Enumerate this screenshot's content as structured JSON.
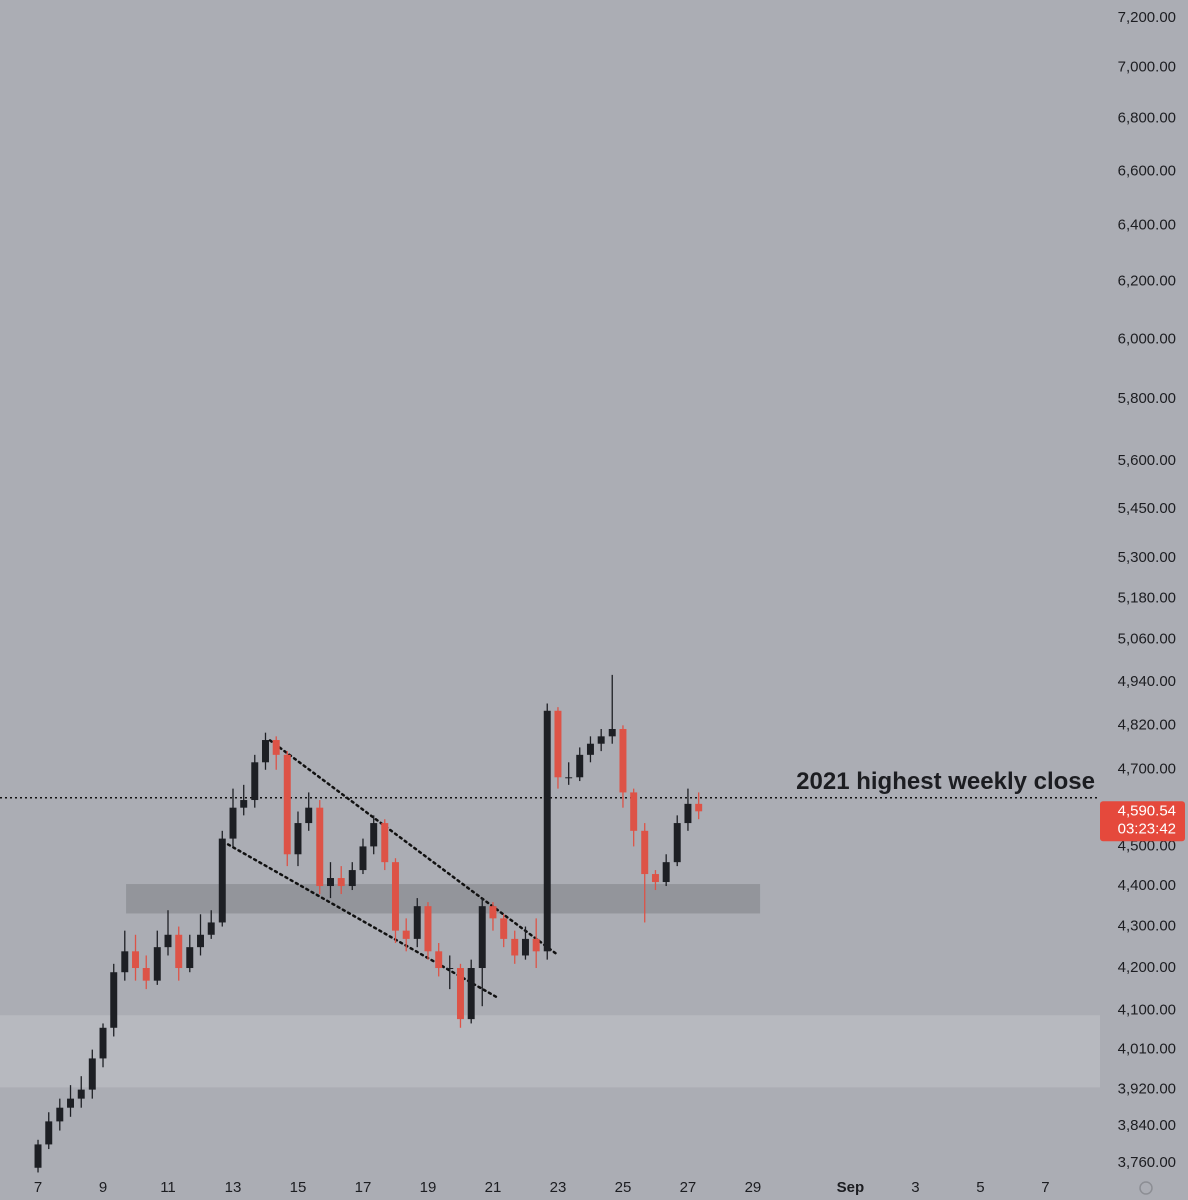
{
  "chart_data": {
    "type": "candlestick",
    "log_scale": true,
    "grid": false,
    "up_color": "#1d1f24",
    "down_color": "#dd5347",
    "xlim": [
      5.83,
      39.68
    ],
    "ylim": [
      3741,
      7274
    ],
    "xticks": [
      7,
      9,
      11,
      13,
      15,
      17,
      19,
      21,
      23,
      25,
      27,
      29,
      {
        "value": 32,
        "label": "Sep"
      },
      {
        "value": 34,
        "label": "3"
      },
      {
        "value": 36,
        "label": "5"
      },
      {
        "value": 38,
        "label": "7"
      }
    ],
    "yticks": [
      {
        "value": 3760,
        "label": "3,760.00"
      },
      {
        "value": 3840,
        "label": "3,840.00"
      },
      {
        "value": 3920,
        "label": "3,920.00"
      },
      {
        "value": 4010,
        "label": "4,010.00"
      },
      {
        "value": 4100,
        "label": "4,100.00"
      },
      {
        "value": 4200,
        "label": "4,200.00"
      },
      {
        "value": 4300,
        "label": "4,300.00"
      },
      {
        "value": 4400,
        "label": "4,400.00"
      },
      {
        "value": 4500,
        "label": "4,500.00"
      },
      {
        "value": 4700,
        "label": "4,700.00"
      },
      {
        "value": 4820,
        "label": "4,820.00"
      },
      {
        "value": 4940,
        "label": "4,940.00"
      },
      {
        "value": 5060,
        "label": "5,060.00"
      },
      {
        "value": 5180,
        "label": "5,180.00"
      },
      {
        "value": 5300,
        "label": "5,300.00"
      },
      {
        "value": 5450,
        "label": "5,450.00"
      },
      {
        "value": 5600,
        "label": "5,600.00"
      },
      {
        "value": 5800,
        "label": "5,800.00"
      },
      {
        "value": 6000,
        "label": "6,000.00"
      },
      {
        "value": 6200,
        "label": "6,200.00"
      },
      {
        "value": 6400,
        "label": "6,400.00"
      },
      {
        "value": 6600,
        "label": "6,600.00"
      },
      {
        "value": 6800,
        "label": "6,800.00"
      },
      {
        "value": 7000,
        "label": "7,000.00"
      },
      {
        "value": 7200,
        "label": "7,200.00"
      }
    ],
    "candles": {
      "x": [
        7,
        7.33,
        7.67,
        8,
        8.33,
        8.67,
        9,
        9.33,
        9.67,
        10,
        10.33,
        10.67,
        11,
        11.33,
        11.67,
        12,
        12.33,
        12.67,
        13,
        13.33,
        13.67,
        14,
        14.33,
        14.67,
        15,
        15.33,
        15.67,
        16,
        16.33,
        16.67,
        17,
        17.33,
        17.67,
        18,
        18.33,
        18.67,
        19,
        19.33,
        19.67,
        20,
        20.33,
        20.67,
        21,
        21.33,
        21.67,
        22,
        22.33,
        22.67,
        23,
        23.33,
        23.67,
        24,
        24.33,
        24.67,
        25,
        25.33,
        25.67,
        26,
        26.33,
        26.67,
        27,
        27.33
      ],
      "open": [
        3750,
        3800,
        3850,
        3880,
        3900,
        3920,
        3990,
        4060,
        4190,
        4240,
        4200,
        4170,
        4250,
        4280,
        4200,
        4250,
        4280,
        4310,
        4520,
        4600,
        4620,
        4720,
        4780,
        4740,
        4480,
        4560,
        4600,
        4400,
        4420,
        4400,
        4440,
        4500,
        4560,
        4460,
        4290,
        4270,
        4350,
        4240,
        4200,
        4200,
        4080,
        4200,
        4350,
        4320,
        4270,
        4230,
        4270,
        4240,
        4860,
        4680,
        4680,
        4740,
        4770,
        4790,
        4810,
        4640,
        4540,
        4430,
        4410,
        4460,
        4560,
        4610
      ],
      "high": [
        3810,
        3870,
        3900,
        3930,
        3950,
        4010,
        4070,
        4210,
        4290,
        4280,
        4230,
        4290,
        4340,
        4300,
        4280,
        4330,
        4340,
        4540,
        4650,
        4660,
        4740,
        4800,
        4790,
        4750,
        4590,
        4640,
        4620,
        4460,
        4450,
        4460,
        4520,
        4580,
        4570,
        4470,
        4320,
        4370,
        4360,
        4260,
        4230,
        4210,
        4220,
        4370,
        4360,
        4330,
        4290,
        4300,
        4320,
        4880,
        4870,
        4720,
        4760,
        4790,
        4810,
        4960,
        4820,
        4650,
        4560,
        4440,
        4480,
        4580,
        4650,
        4640
      ],
      "low": [
        3740,
        3790,
        3830,
        3860,
        3880,
        3900,
        3970,
        4040,
        4170,
        4170,
        4150,
        4160,
        4230,
        4170,
        4190,
        4230,
        4270,
        4300,
        4500,
        4580,
        4600,
        4700,
        4700,
        4450,
        4450,
        4540,
        4380,
        4370,
        4380,
        4390,
        4430,
        4480,
        4440,
        4260,
        4240,
        4250,
        4220,
        4180,
        4150,
        4060,
        4070,
        4110,
        4290,
        4250,
        4210,
        4220,
        4200,
        4220,
        4650,
        4660,
        4670,
        4720,
        4750,
        4770,
        4600,
        4500,
        4310,
        4390,
        4400,
        4450,
        4540,
        4570
      ],
      "close": [
        3800,
        3850,
        3880,
        3900,
        3920,
        3990,
        4060,
        4190,
        4240,
        4200,
        4170,
        4250,
        4280,
        4200,
        4250,
        4280,
        4310,
        4520,
        4600,
        4620,
        4720,
        4780,
        4740,
        4480,
        4560,
        4600,
        4400,
        4420,
        4400,
        4440,
        4500,
        4560,
        4460,
        4290,
        4270,
        4350,
        4240,
        4200,
        4200,
        4080,
        4200,
        4350,
        4320,
        4270,
        4230,
        4270,
        4240,
        4860,
        4680,
        4680,
        4740,
        4770,
        4790,
        4810,
        4640,
        4540,
        4430,
        4410,
        4460,
        4560,
        4610,
        4590.54
      ]
    },
    "reference_line": {
      "value": 4626,
      "label": "2021 highest weekly close"
    },
    "zones": [
      {
        "xlim": [
          9.71,
          29.22
        ],
        "ylim": [
          4332,
          4405
        ],
        "color": "#8e9096"
      },
      {
        "xlim": [
          5.83,
          39.68
        ],
        "ylim": [
          3925,
          4089
        ],
        "color": "#b9bbc1"
      }
    ],
    "trendlines": [
      {
        "x": [
          14.14,
          23.0
        ],
        "y": [
          4779,
          4231
        ]
      },
      {
        "x": [
          12.85,
          21.12
        ],
        "y": [
          4505,
          4131
        ]
      }
    ],
    "last_price": {
      "value": 4590.54,
      "label": "4,590.54",
      "countdown": "03:23:42",
      "color": "#e5493c"
    }
  }
}
